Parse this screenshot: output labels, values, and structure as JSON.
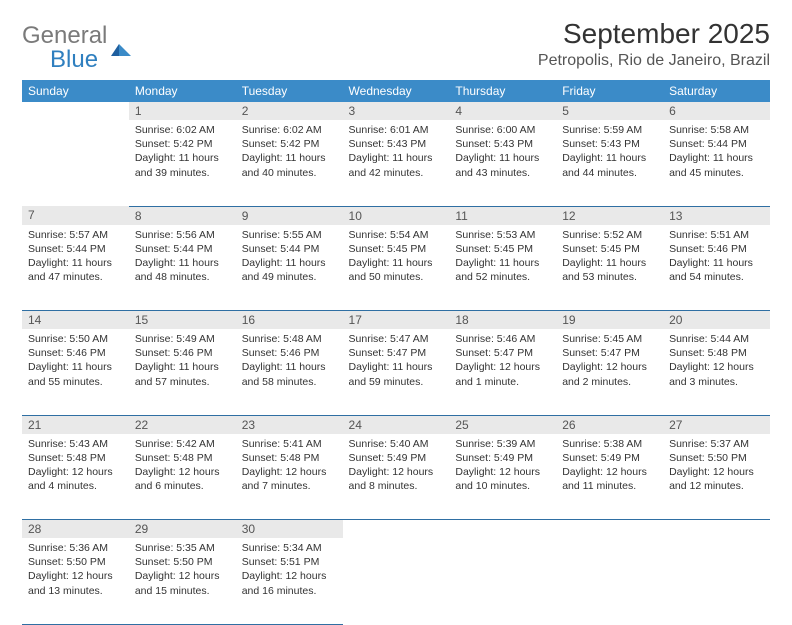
{
  "brand": {
    "word1": "General",
    "word2": "Blue"
  },
  "title": "September 2025",
  "location": "Petropolis, Rio de Janeiro, Brazil",
  "colors": {
    "header_bg": "#3b8bc8",
    "header_text": "#ffffff",
    "daynum_bg": "#e9e9e9",
    "row_border": "#2f6fa3",
    "logo_gray": "#7a7a7a",
    "logo_blue": "#2f7fbf"
  },
  "calendar": {
    "type": "calendar-table",
    "columns": [
      "Sunday",
      "Monday",
      "Tuesday",
      "Wednesday",
      "Thursday",
      "Friday",
      "Saturday"
    ],
    "weeks": [
      [
        null,
        {
          "d": "1",
          "sr": "6:02 AM",
          "ss": "5:42 PM",
          "dl": "11 hours and 39 minutes."
        },
        {
          "d": "2",
          "sr": "6:02 AM",
          "ss": "5:42 PM",
          "dl": "11 hours and 40 minutes."
        },
        {
          "d": "3",
          "sr": "6:01 AM",
          "ss": "5:43 PM",
          "dl": "11 hours and 42 minutes."
        },
        {
          "d": "4",
          "sr": "6:00 AM",
          "ss": "5:43 PM",
          "dl": "11 hours and 43 minutes."
        },
        {
          "d": "5",
          "sr": "5:59 AM",
          "ss": "5:43 PM",
          "dl": "11 hours and 44 minutes."
        },
        {
          "d": "6",
          "sr": "5:58 AM",
          "ss": "5:44 PM",
          "dl": "11 hours and 45 minutes."
        }
      ],
      [
        {
          "d": "7",
          "sr": "5:57 AM",
          "ss": "5:44 PM",
          "dl": "11 hours and 47 minutes."
        },
        {
          "d": "8",
          "sr": "5:56 AM",
          "ss": "5:44 PM",
          "dl": "11 hours and 48 minutes."
        },
        {
          "d": "9",
          "sr": "5:55 AM",
          "ss": "5:44 PM",
          "dl": "11 hours and 49 minutes."
        },
        {
          "d": "10",
          "sr": "5:54 AM",
          "ss": "5:45 PM",
          "dl": "11 hours and 50 minutes."
        },
        {
          "d": "11",
          "sr": "5:53 AM",
          "ss": "5:45 PM",
          "dl": "11 hours and 52 minutes."
        },
        {
          "d": "12",
          "sr": "5:52 AM",
          "ss": "5:45 PM",
          "dl": "11 hours and 53 minutes."
        },
        {
          "d": "13",
          "sr": "5:51 AM",
          "ss": "5:46 PM",
          "dl": "11 hours and 54 minutes."
        }
      ],
      [
        {
          "d": "14",
          "sr": "5:50 AM",
          "ss": "5:46 PM",
          "dl": "11 hours and 55 minutes."
        },
        {
          "d": "15",
          "sr": "5:49 AM",
          "ss": "5:46 PM",
          "dl": "11 hours and 57 minutes."
        },
        {
          "d": "16",
          "sr": "5:48 AM",
          "ss": "5:46 PM",
          "dl": "11 hours and 58 minutes."
        },
        {
          "d": "17",
          "sr": "5:47 AM",
          "ss": "5:47 PM",
          "dl": "11 hours and 59 minutes."
        },
        {
          "d": "18",
          "sr": "5:46 AM",
          "ss": "5:47 PM",
          "dl": "12 hours and 1 minute."
        },
        {
          "d": "19",
          "sr": "5:45 AM",
          "ss": "5:47 PM",
          "dl": "12 hours and 2 minutes."
        },
        {
          "d": "20",
          "sr": "5:44 AM",
          "ss": "5:48 PM",
          "dl": "12 hours and 3 minutes."
        }
      ],
      [
        {
          "d": "21",
          "sr": "5:43 AM",
          "ss": "5:48 PM",
          "dl": "12 hours and 4 minutes."
        },
        {
          "d": "22",
          "sr": "5:42 AM",
          "ss": "5:48 PM",
          "dl": "12 hours and 6 minutes."
        },
        {
          "d": "23",
          "sr": "5:41 AM",
          "ss": "5:48 PM",
          "dl": "12 hours and 7 minutes."
        },
        {
          "d": "24",
          "sr": "5:40 AM",
          "ss": "5:49 PM",
          "dl": "12 hours and 8 minutes."
        },
        {
          "d": "25",
          "sr": "5:39 AM",
          "ss": "5:49 PM",
          "dl": "12 hours and 10 minutes."
        },
        {
          "d": "26",
          "sr": "5:38 AM",
          "ss": "5:49 PM",
          "dl": "12 hours and 11 minutes."
        },
        {
          "d": "27",
          "sr": "5:37 AM",
          "ss": "5:50 PM",
          "dl": "12 hours and 12 minutes."
        }
      ],
      [
        {
          "d": "28",
          "sr": "5:36 AM",
          "ss": "5:50 PM",
          "dl": "12 hours and 13 minutes."
        },
        {
          "d": "29",
          "sr": "5:35 AM",
          "ss": "5:50 PM",
          "dl": "12 hours and 15 minutes."
        },
        {
          "d": "30",
          "sr": "5:34 AM",
          "ss": "5:51 PM",
          "dl": "12 hours and 16 minutes."
        },
        null,
        null,
        null,
        null
      ]
    ],
    "labels": {
      "sunrise": "Sunrise:",
      "sunset": "Sunset:",
      "daylight": "Daylight:"
    }
  }
}
